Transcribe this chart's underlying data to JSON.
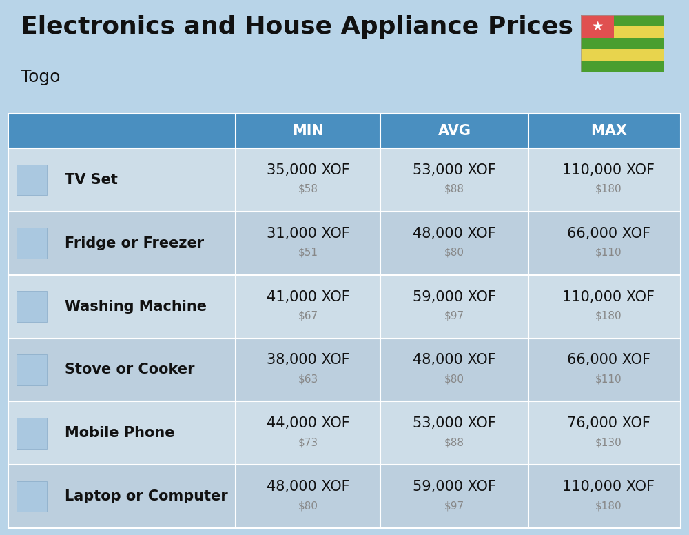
{
  "title": "Electronics and House Appliance Prices",
  "subtitle": "Togo",
  "background_color": "#b8d4e8",
  "header_color": "#4a8fc0",
  "header_text_color": "#ffffff",
  "row_bg_even": "#cddde8",
  "row_bg_odd": "#bccfde",
  "divider_color": "#ffffff",
  "columns": [
    "MIN",
    "AVG",
    "MAX"
  ],
  "items": [
    {
      "name": "TV Set",
      "min_xof": "35,000 XOF",
      "min_usd": "$58",
      "avg_xof": "53,000 XOF",
      "avg_usd": "$88",
      "max_xof": "110,000 XOF",
      "max_usd": "$180"
    },
    {
      "name": "Fridge or Freezer",
      "min_xof": "31,000 XOF",
      "min_usd": "$51",
      "avg_xof": "48,000 XOF",
      "avg_usd": "$80",
      "max_xof": "66,000 XOF",
      "max_usd": "$110"
    },
    {
      "name": "Washing Machine",
      "min_xof": "41,000 XOF",
      "min_usd": "$67",
      "avg_xof": "59,000 XOF",
      "avg_usd": "$97",
      "max_xof": "110,000 XOF",
      "max_usd": "$180"
    },
    {
      "name": "Stove or Cooker",
      "min_xof": "38,000 XOF",
      "min_usd": "$63",
      "avg_xof": "48,000 XOF",
      "avg_usd": "$80",
      "max_xof": "66,000 XOF",
      "max_usd": "$110"
    },
    {
      "name": "Mobile Phone",
      "min_xof": "44,000 XOF",
      "min_usd": "$73",
      "avg_xof": "53,000 XOF",
      "avg_usd": "$88",
      "max_xof": "76,000 XOF",
      "max_usd": "$130"
    },
    {
      "name": "Laptop or Computer",
      "min_xof": "48,000 XOF",
      "min_usd": "$80",
      "avg_xof": "59,000 XOF",
      "avg_usd": "$97",
      "max_xof": "110,000 XOF",
      "max_usd": "$180"
    }
  ],
  "title_fontsize": 26,
  "subtitle_fontsize": 18,
  "header_fontsize": 15,
  "item_name_fontsize": 15,
  "item_value_fontsize": 15,
  "item_usd_fontsize": 11,
  "flag_green": "#4a9e2f",
  "flag_yellow": "#e8d44d",
  "flag_red": "#e05050",
  "togo_bg": "#b8d4e8"
}
